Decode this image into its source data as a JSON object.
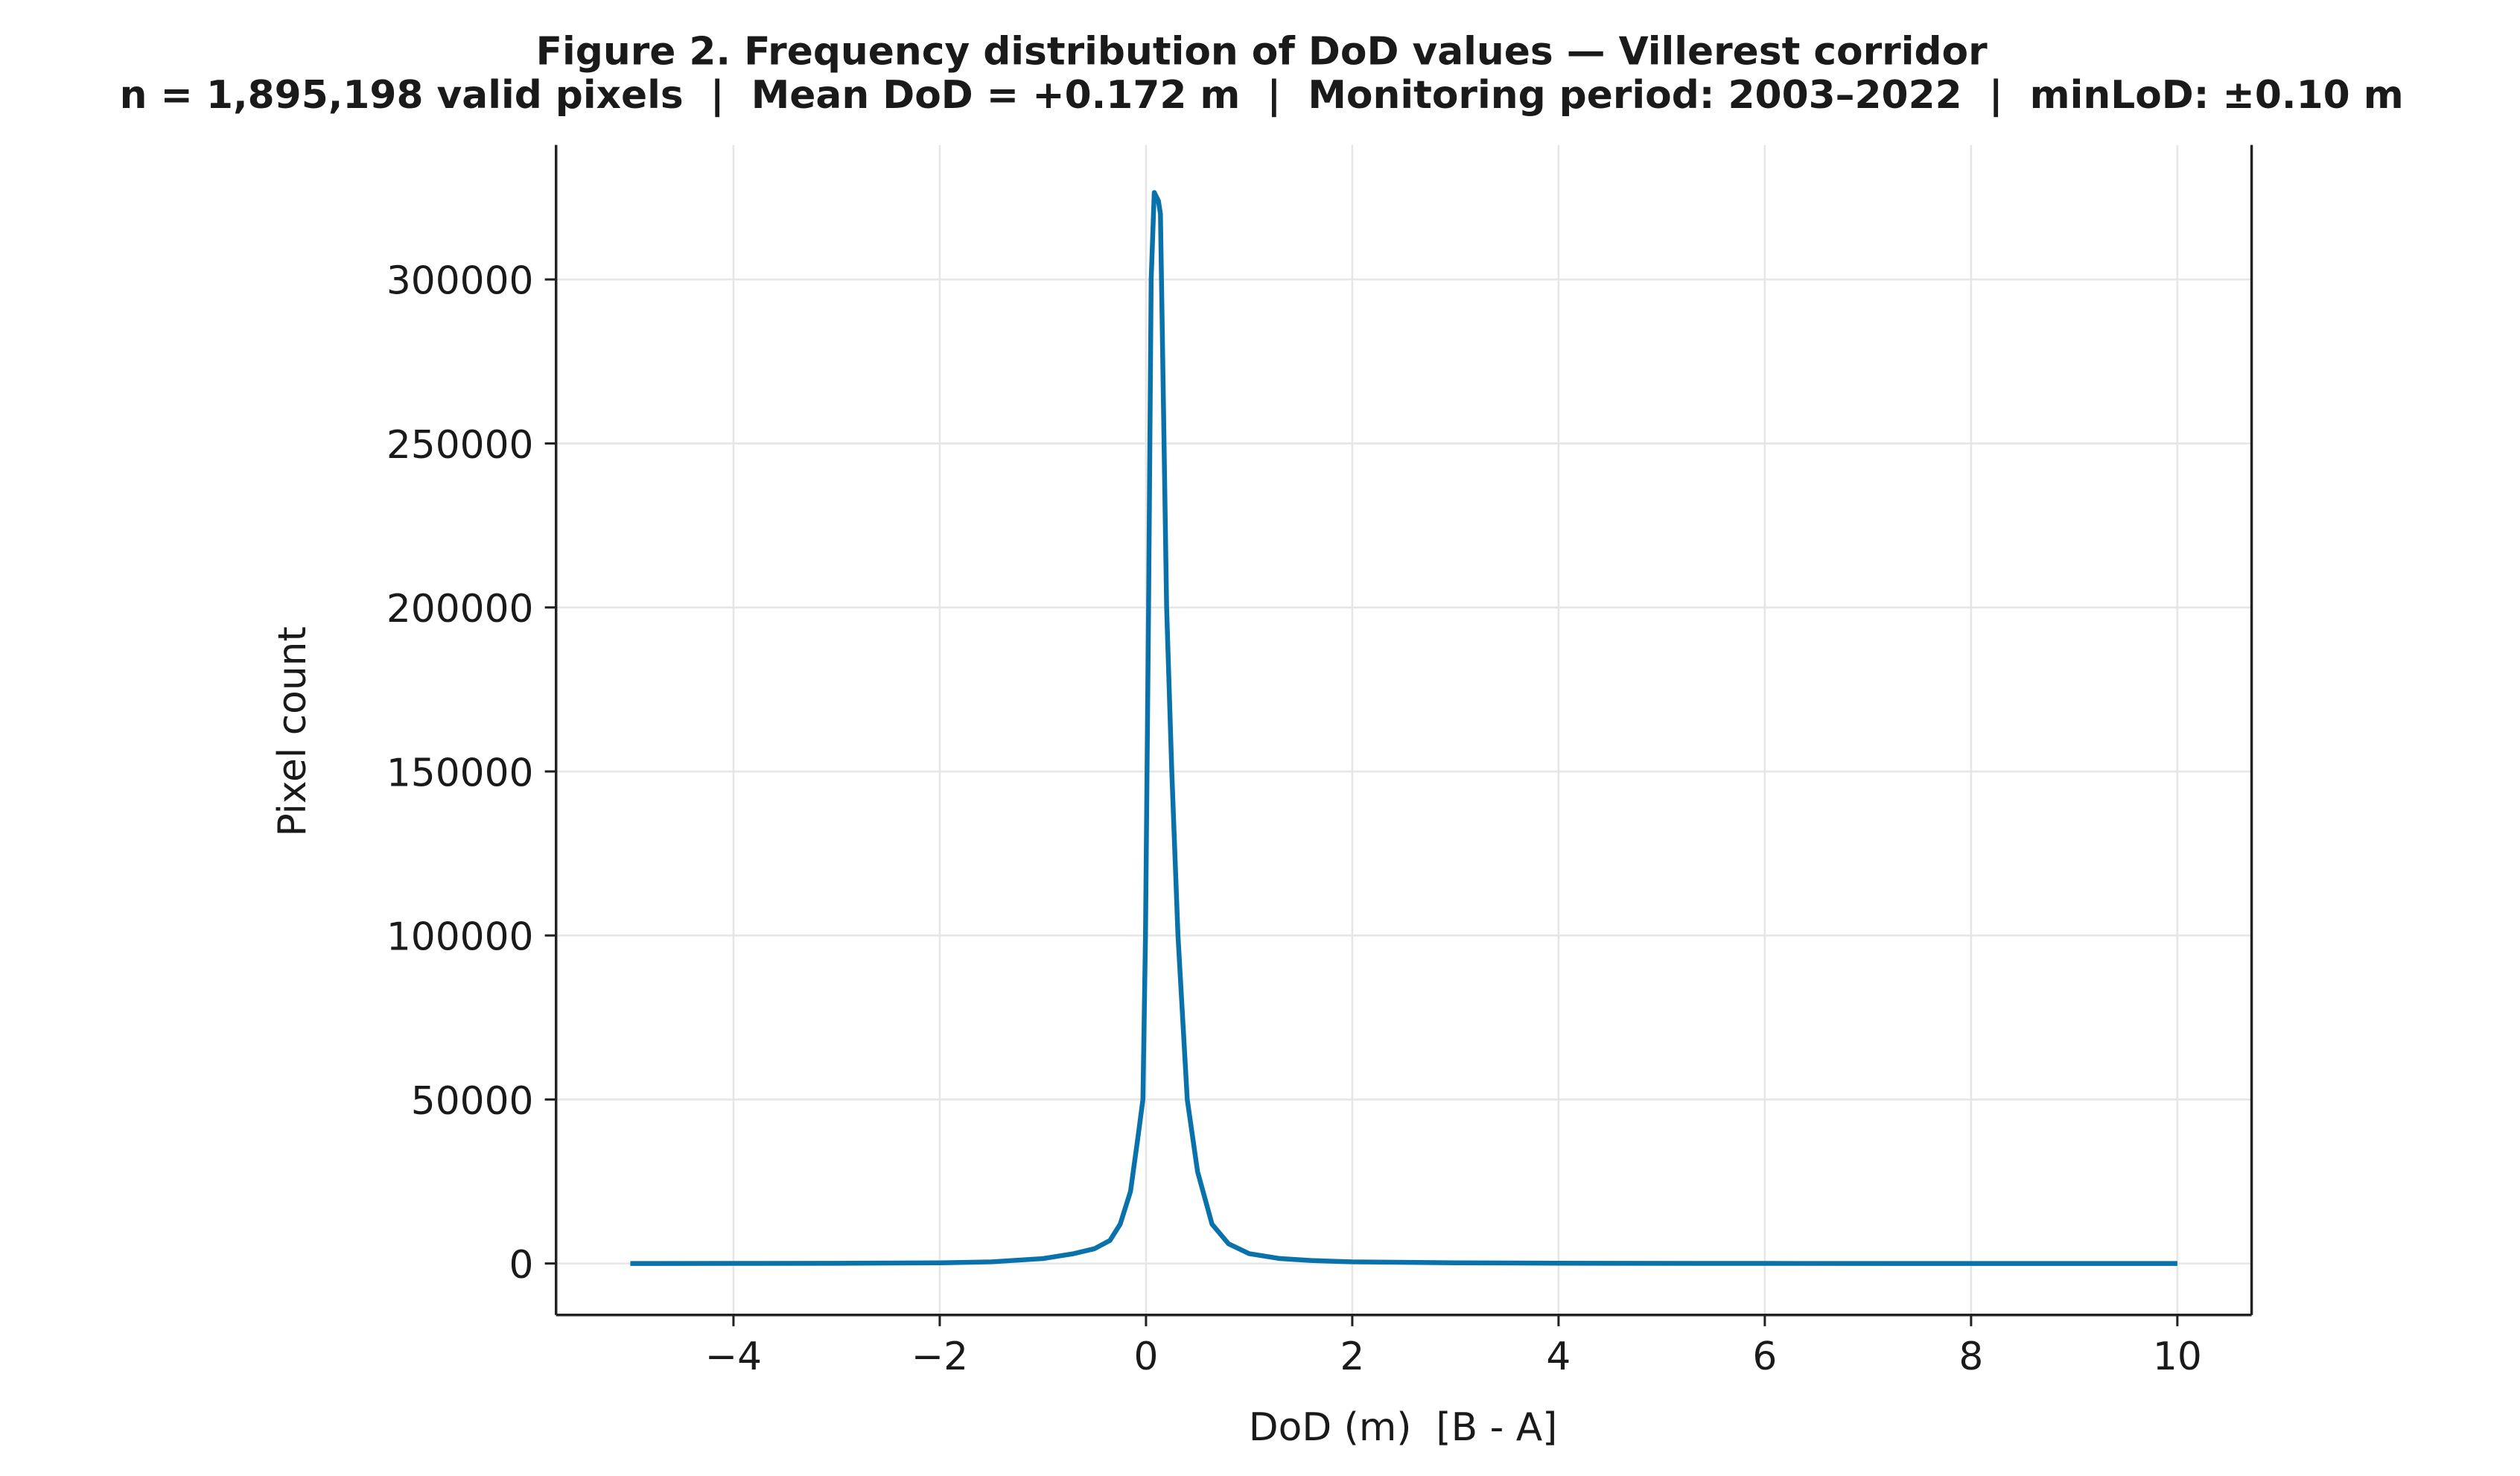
{
  "chart_data": {
    "type": "line",
    "title": "Figure 2.  Frequency distribution of DoD values — Villerest corridor",
    "subtitle": "n = 1,895,198 valid pixels  |  Mean DoD = +0.172 m  |  Monitoring period: 2003–2022  |  minLoD: ±0.10 m",
    "xlabel": "DoD (m)  [B - A]",
    "ylabel": "Pixel count",
    "xlim": [
      -5.72,
      10.72
    ],
    "ylim": [
      -15700,
      341000
    ],
    "xticks": [
      -4,
      -2,
      0,
      2,
      4,
      6,
      8,
      10
    ],
    "xtick_labels": [
      "−4",
      "−2",
      "0",
      "2",
      "4",
      "6",
      "8",
      "10"
    ],
    "yticks": [
      0,
      50000,
      100000,
      150000,
      200000,
      250000,
      300000
    ],
    "ytick_labels": [
      "0",
      "50000",
      "100000",
      "150000",
      "200000",
      "250000",
      "300000"
    ],
    "grid": true,
    "line_color": "#0a72aa",
    "series": [
      {
        "x": [
          -5,
          -4,
          -3,
          -2,
          -1.5,
          -1,
          -0.7,
          -0.5,
          -0.35,
          -0.25,
          -0.15,
          -0.08,
          -0.03,
          -0.005,
          0.025,
          0.05,
          0.08,
          0.12,
          0.14,
          0.17,
          0.2,
          0.25,
          0.31,
          0.4,
          0.5,
          0.64,
          0.8,
          1.0,
          1.3,
          1.6,
          2,
          3,
          4,
          6,
          8,
          10
        ],
        "y": [
          0,
          20,
          60,
          200,
          500,
          1500,
          3000,
          4500,
          7000,
          12000,
          22000,
          38000,
          50000,
          100000,
          200000,
          300000,
          326500,
          324000,
          320000,
          260000,
          200000,
          150000,
          100000,
          50000,
          28000,
          12000,
          6000,
          3000,
          1500,
          900,
          500,
          200,
          80,
          20,
          5,
          0
        ]
      }
    ]
  }
}
